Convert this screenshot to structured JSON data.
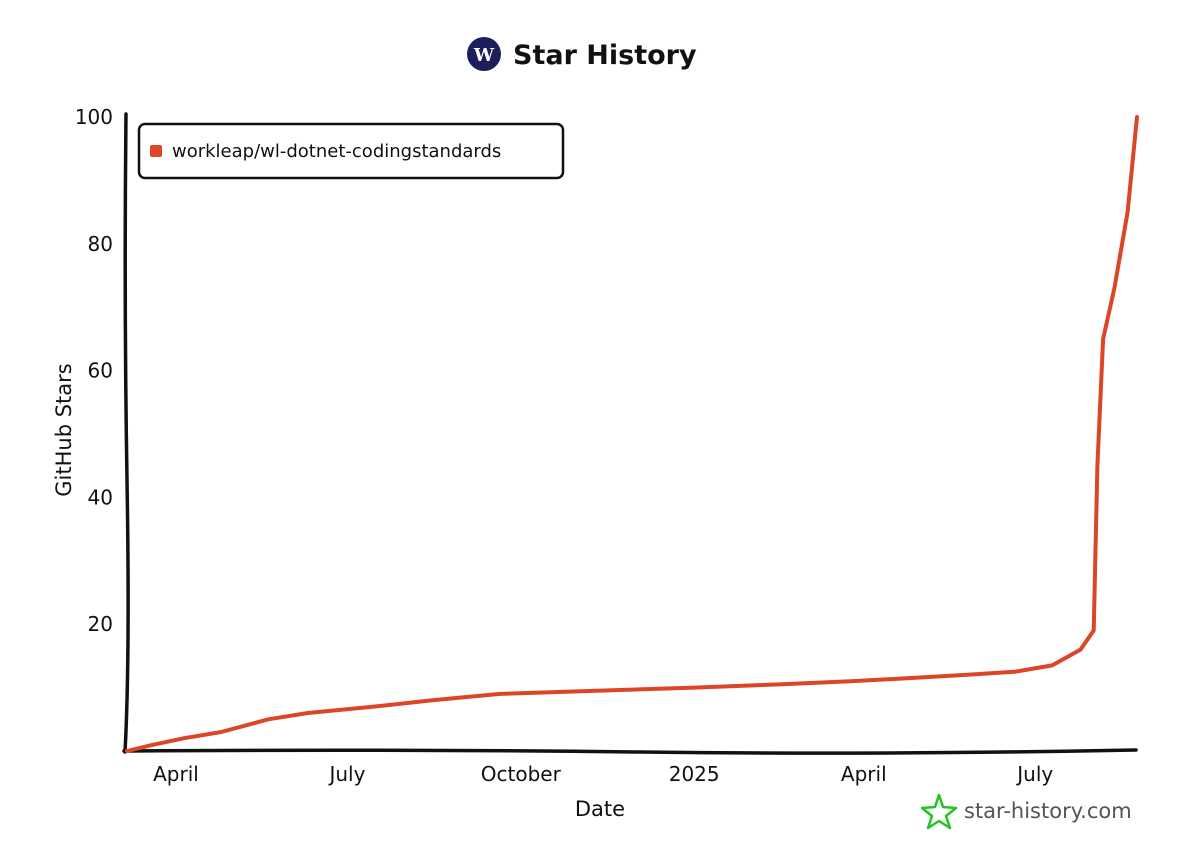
{
  "header": {
    "title": "Star History",
    "logo_color": "#1b1f5c"
  },
  "watermark": {
    "text": "star-history.com",
    "icon": "star-icon",
    "icon_color": "#22c322"
  },
  "chart_data": {
    "type": "line",
    "xlabel": "Date",
    "ylabel": "GitHub Stars",
    "x_tick_labels": [
      "April",
      "July",
      "October",
      "2025",
      "April",
      "July"
    ],
    "y_tick_labels": [
      "20",
      "40",
      "60",
      "80",
      "100"
    ],
    "y_ticks": [
      20,
      40,
      60,
      80,
      100
    ],
    "ylim": [
      0,
      100
    ],
    "xlim": [
      "2024-03-06",
      "2025-08-24"
    ],
    "x_ticks": [
      "2024-04-01",
      "2024-07-01",
      "2024-10-01",
      "2025-01-01",
      "2025-04-01",
      "2025-07-01"
    ],
    "grid": false,
    "legend_position": "top-left",
    "series": [
      {
        "name": "workleap/wl-dotnet-codingstandards",
        "color": "#dd4528",
        "points": [
          {
            "x": "2024-03-06",
            "y": 0
          },
          {
            "x": "2024-03-20",
            "y": 1
          },
          {
            "x": "2024-04-05",
            "y": 2
          },
          {
            "x": "2024-04-25",
            "y": 3
          },
          {
            "x": "2024-05-20",
            "y": 5
          },
          {
            "x": "2024-06-10",
            "y": 6
          },
          {
            "x": "2024-07-15",
            "y": 7
          },
          {
            "x": "2024-08-15",
            "y": 8
          },
          {
            "x": "2024-09-20",
            "y": 9
          },
          {
            "x": "2024-11-10",
            "y": 9.5
          },
          {
            "x": "2025-01-01",
            "y": 10
          },
          {
            "x": "2025-02-15",
            "y": 10.5
          },
          {
            "x": "2025-03-25",
            "y": 11
          },
          {
            "x": "2025-04-25",
            "y": 11.5
          },
          {
            "x": "2025-05-25",
            "y": 12
          },
          {
            "x": "2025-06-20",
            "y": 12.5
          },
          {
            "x": "2025-07-10",
            "y": 13.5
          },
          {
            "x": "2025-07-25",
            "y": 16
          },
          {
            "x": "2025-08-01",
            "y": 19
          },
          {
            "x": "2025-08-03",
            "y": 45
          },
          {
            "x": "2025-08-06",
            "y": 65
          },
          {
            "x": "2025-08-12",
            "y": 73
          },
          {
            "x": "2025-08-19",
            "y": 85
          },
          {
            "x": "2025-08-24",
            "y": 100
          }
        ]
      }
    ]
  }
}
